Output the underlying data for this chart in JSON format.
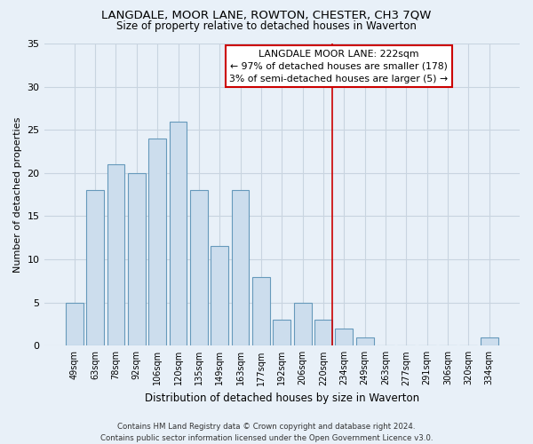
{
  "title": "LANGDALE, MOOR LANE, ROWTON, CHESTER, CH3 7QW",
  "subtitle": "Size of property relative to detached houses in Waverton",
  "xlabel": "Distribution of detached houses by size in Waverton",
  "ylabel": "Number of detached properties",
  "bar_labels": [
    "49sqm",
    "63sqm",
    "78sqm",
    "92sqm",
    "106sqm",
    "120sqm",
    "135sqm",
    "149sqm",
    "163sqm",
    "177sqm",
    "192sqm",
    "206sqm",
    "220sqm",
    "234sqm",
    "249sqm",
    "263sqm",
    "277sqm",
    "291sqm",
    "306sqm",
    "320sqm",
    "334sqm"
  ],
  "bar_values": [
    5,
    18,
    21,
    20,
    24,
    26,
    18,
    11.5,
    18,
    8,
    3,
    5,
    3,
    2,
    1,
    0,
    0,
    0,
    0,
    0,
    1
  ],
  "bar_color": "#ccdded",
  "bar_edge_color": "#6699bb",
  "vline_x_index": 12,
  "vline_color": "#cc0000",
  "ylim": [
    0,
    35
  ],
  "yticks": [
    0,
    5,
    10,
    15,
    20,
    25,
    30,
    35
  ],
  "annotation_title": "LANGDALE MOOR LANE: 222sqm",
  "annotation_line1": "← 97% of detached houses are smaller (178)",
  "annotation_line2": "3% of semi-detached houses are larger (5) →",
  "annotation_box_color": "#ffffff",
  "annotation_box_edge": "#cc0000",
  "footer_line1": "Contains HM Land Registry data © Crown copyright and database right 2024.",
  "footer_line2": "Contains public sector information licensed under the Open Government Licence v3.0.",
  "background_color": "#e8f0f8",
  "grid_color": "#c8d4e0"
}
